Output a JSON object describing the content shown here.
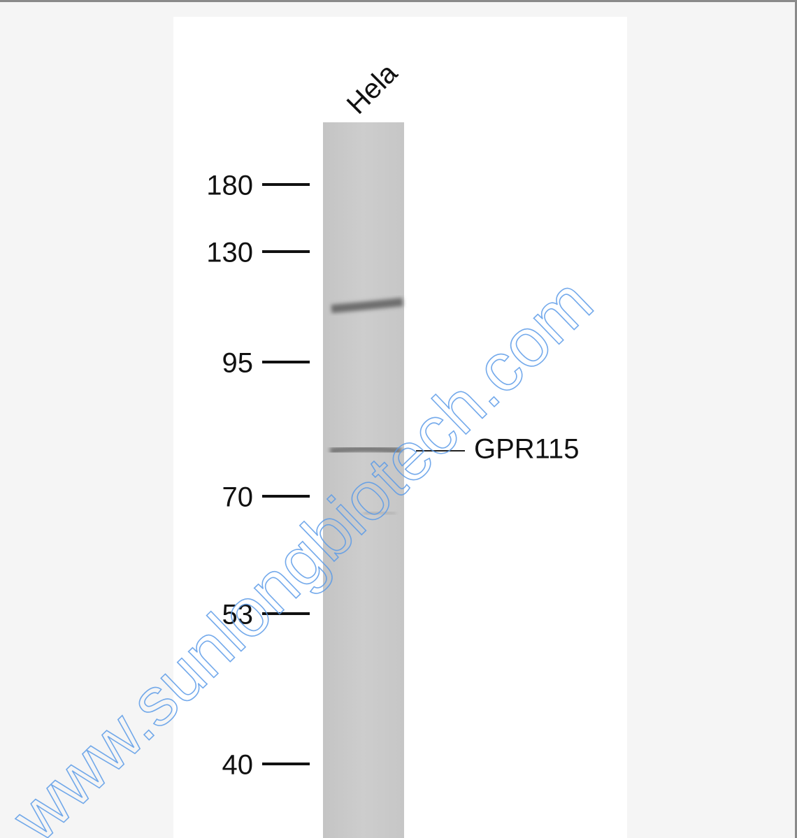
{
  "lane_label": "Hela",
  "markers": [
    "180",
    "130",
    "95",
    "70",
    "53",
    "40"
  ],
  "band_label": "GPR115",
  "watermark": "www.sunlongbiotech.com"
}
